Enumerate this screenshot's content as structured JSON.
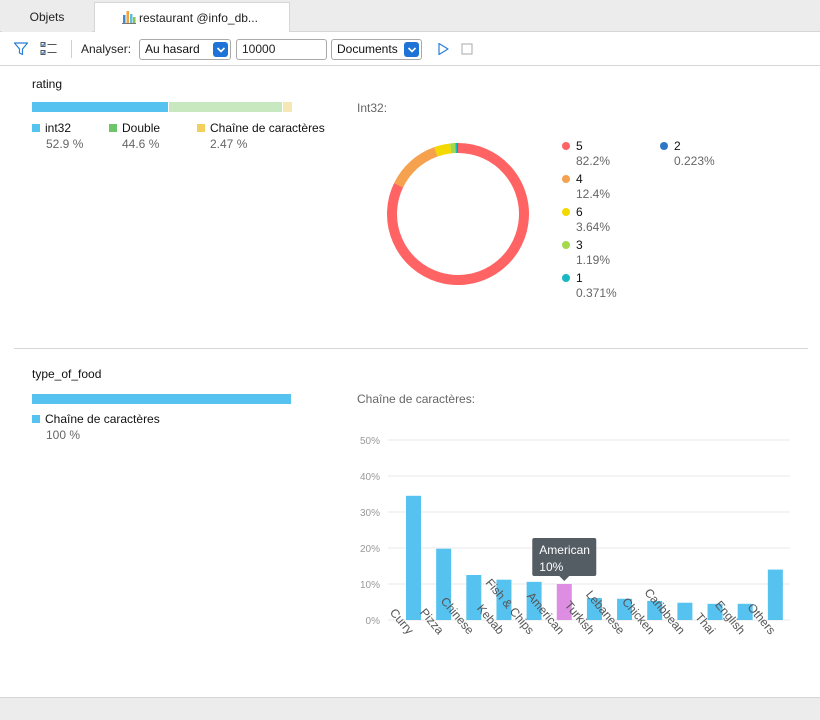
{
  "tabs": [
    {
      "label": "Objets"
    },
    {
      "label": "restaurant @info_db..."
    }
  ],
  "toolbar": {
    "filter_icon": "filter-icon",
    "fields_icon": "field-list-icon",
    "analyze_label": "Analyser:",
    "sample_mode": "Au hasard",
    "sample_size": "10000",
    "target": "Documents",
    "run_icon": "play-icon",
    "stop_icon": "stop-icon"
  },
  "colors": {
    "int32": "#56c2f0",
    "double": "#c8e8bf",
    "string": "#f6e8b4",
    "pie": [
      "#ff6363",
      "#f5a14e",
      "#f3d900",
      "#a3d94a",
      "#18b8c3",
      "#2e76c3"
    ],
    "bar": "#56c2f0",
    "bar_highlight": "#dd8ee3"
  },
  "rating": {
    "title": "rating",
    "types": [
      {
        "name": "int32",
        "pct": "52.9 %",
        "value": 52.9,
        "legend_color": "#56c2f0"
      },
      {
        "name": "Double",
        "pct": "44.6 %",
        "value": 44.6,
        "legend_color": "#6dc56a"
      },
      {
        "name": "Chaîne de caractères",
        "pct": "2.47 %",
        "value": 2.47,
        "legend_color": "#f3cf5c"
      }
    ],
    "pie_caption": "Int32:",
    "pie": [
      {
        "label": "5",
        "pct": "82.2%",
        "value": 82.2
      },
      {
        "label": "4",
        "pct": "12.4%",
        "value": 12.4
      },
      {
        "label": "6",
        "pct": "3.64%",
        "value": 3.64
      },
      {
        "label": "3",
        "pct": "1.19%",
        "value": 1.19
      },
      {
        "label": "1",
        "pct": "0.371%",
        "value": 0.371
      },
      {
        "label": "2",
        "pct": "0.223%",
        "value": 0.223
      }
    ]
  },
  "type_of_food": {
    "title": "type_of_food",
    "types": [
      {
        "name": "Chaîne de caractères",
        "pct": "100 %",
        "value": 100,
        "legend_color": "#56c2f0"
      }
    ],
    "chart_caption": "Chaîne de caractères:"
  },
  "chart_data": {
    "type": "bar",
    "title": "",
    "xlabel": "",
    "ylabel": "",
    "ylim": [
      0,
      50
    ],
    "yticks": [
      "0%",
      "10%",
      "20%",
      "30%",
      "40%",
      "50%"
    ],
    "categories": [
      "Curry",
      "Pizza",
      "Chinese",
      "Kebab",
      "Fish & Chips",
      "American",
      "Turkish",
      "Lebanese",
      "Chicken",
      "Caribbean",
      "Thai",
      "English",
      "Others"
    ],
    "values": [
      34.5,
      19.8,
      12.5,
      11.2,
      10.6,
      10.0,
      6.1,
      5.9,
      5.3,
      4.8,
      4.5,
      4.5,
      14.0
    ],
    "highlight_index": 5,
    "tooltip": {
      "category": "American",
      "value": "10%"
    }
  }
}
